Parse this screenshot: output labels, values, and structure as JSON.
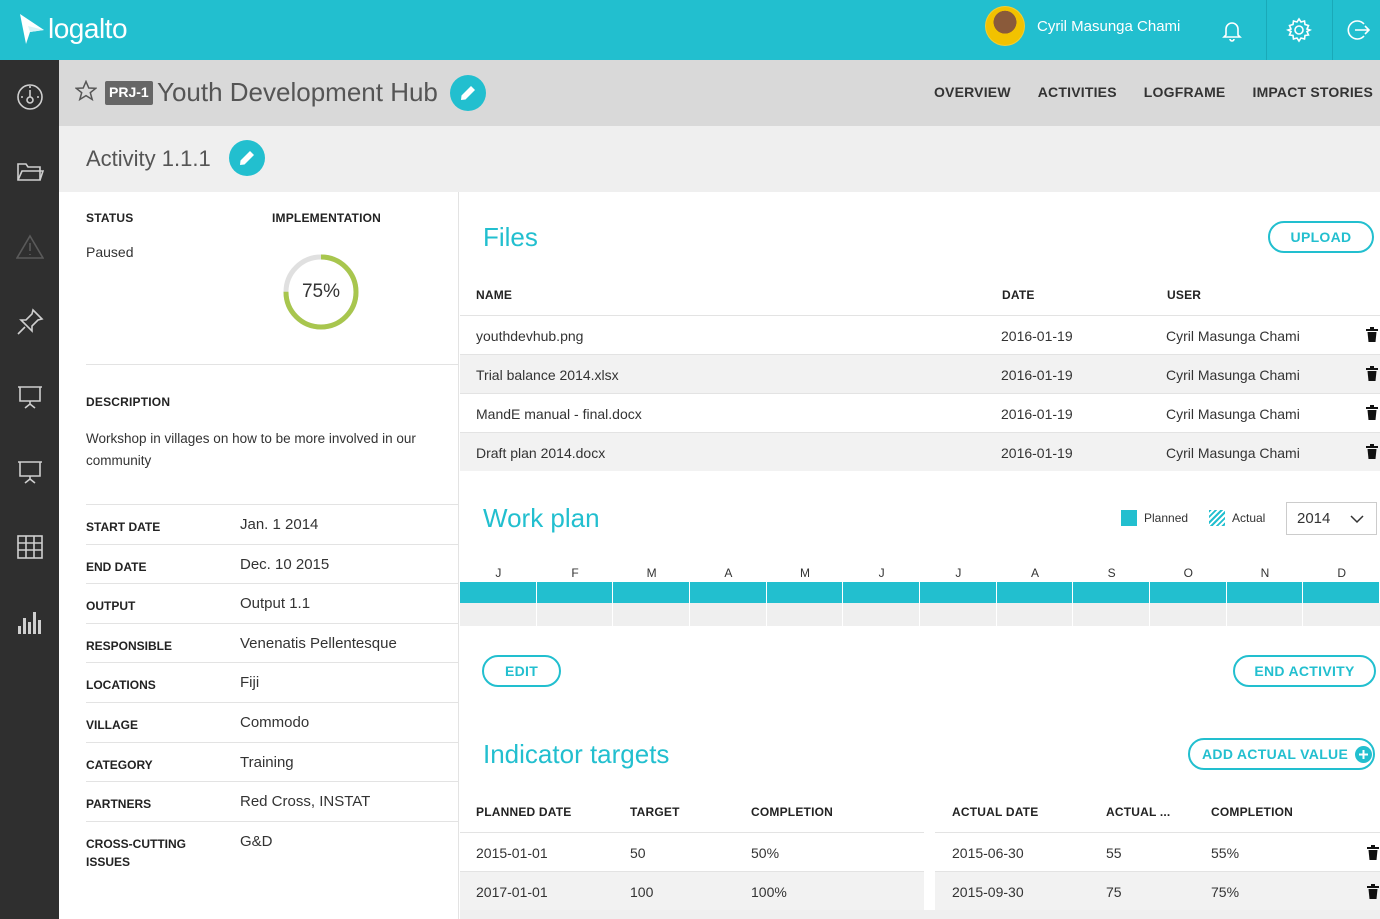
{
  "app": {
    "name": "logalto"
  },
  "user": {
    "name": "Cyril Masunga Chami"
  },
  "icons": {
    "logo": "paper-plane-icon",
    "bell": "bell-icon",
    "settings": "gear-icon",
    "logout": "logout-icon",
    "nav": [
      "dashboard-icon",
      "folder-icon",
      "warning-icon",
      "pin-icon",
      "presentation-icon",
      "presentation-icon",
      "grid-icon",
      "bar-chart-icon"
    ]
  },
  "colors": {
    "accent": "#22bfcf",
    "sidebar": "#2f2f2f",
    "ring": "#a8c64e"
  },
  "project": {
    "badge": "PRJ-1",
    "title": "Youth Development Hub",
    "tabs": [
      "OVERVIEW",
      "ACTIVITIES",
      "LOGFRAME",
      "IMPACT STORIES"
    ]
  },
  "activity": {
    "title": "Activity 1.1.1",
    "status_label": "STATUS",
    "status_value": "Paused",
    "implementation_label": "IMPLEMENTATION",
    "implementation_text": "75%",
    "implementation_fraction": 0.75,
    "description_label": "DESCRIPTION",
    "description": "Workshop in villages on how to be more involved in our community",
    "fields": [
      {
        "key": "START DATE",
        "value": "Jan. 1 2014"
      },
      {
        "key": "END DATE",
        "value": "Dec. 10 2015"
      },
      {
        "key": "OUTPUT",
        "value": "Output 1.1"
      },
      {
        "key": "RESPONSIBLE",
        "value": "Venenatis Pellentesque"
      },
      {
        "key": "LOCATIONS",
        "value": "Fiji"
      },
      {
        "key": "VILLAGE",
        "value": "Commodo"
      },
      {
        "key": "CATEGORY",
        "value": "Training"
      },
      {
        "key": "PARTNERS",
        "value": "Red Cross, INSTAT"
      },
      {
        "key": "CROSS-CUTTING ISSUES",
        "value": "G&D"
      }
    ]
  },
  "files": {
    "title": "Files",
    "upload_label": "UPLOAD",
    "headers": {
      "name": "NAME",
      "date": "DATE",
      "user": "USER"
    },
    "rows": [
      {
        "name": "youthdevhub.png",
        "date": "2016-01-19",
        "user": "Cyril Masunga Chami"
      },
      {
        "name": "Trial balance 2014.xlsx",
        "date": "2016-01-19",
        "user": "Cyril Masunga Chami"
      },
      {
        "name": "MandE manual - final.docx",
        "date": "2016-01-19",
        "user": "Cyril Masunga Chami"
      },
      {
        "name": "Draft plan 2014.docx",
        "date": "2016-01-19",
        "user": "Cyril Masunga Chami"
      }
    ]
  },
  "workplan": {
    "title": "Work plan",
    "legend_planned": "Planned",
    "legend_actual": "Actual",
    "year": "2014",
    "months": [
      "J",
      "F",
      "M",
      "A",
      "M",
      "J",
      "J",
      "A",
      "S",
      "O",
      "N",
      "D"
    ],
    "planned_months": [
      1,
      1,
      1,
      1,
      1,
      1,
      1,
      1,
      1,
      1,
      1,
      1
    ],
    "actual_months": [
      0,
      0,
      0,
      0,
      0,
      0,
      0,
      0,
      0,
      0,
      0,
      0
    ],
    "edit_label": "EDIT",
    "end_label": "END ACTIVITY"
  },
  "indicators": {
    "title": "Indicator targets",
    "add_label": "ADD ACTUAL VALUE",
    "planned_headers": {
      "date": "PLANNED DATE",
      "target": "TARGET",
      "completion": "COMPLETION"
    },
    "actual_headers": {
      "date": "ACTUAL DATE",
      "actual": "ACTUAL ...",
      "completion": "COMPLETION"
    },
    "planned_rows": [
      {
        "date": "2015-01-01",
        "target": "50",
        "completion": "50%"
      },
      {
        "date": "2017-01-01",
        "target": "100",
        "completion": "100%"
      }
    ],
    "actual_rows": [
      {
        "date": "2015-06-30",
        "actual": "55",
        "completion": "55%"
      },
      {
        "date": "2015-09-30",
        "actual": "75",
        "completion": "75%"
      }
    ]
  }
}
